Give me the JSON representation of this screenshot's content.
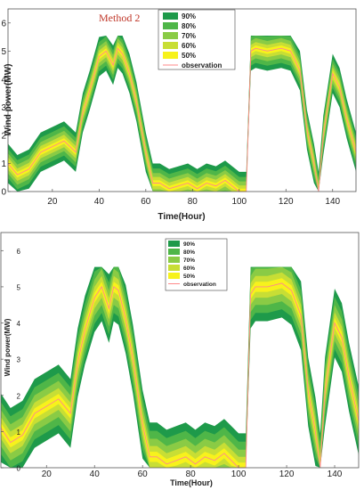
{
  "chart_data": [
    {
      "type": "area",
      "method_label": "Method 2",
      "xlabel": "Time(Hour)",
      "ylabel": "Wind power(MW)",
      "xlim": [
        1,
        150
      ],
      "ylim": [
        0,
        6.5
      ],
      "xticks": [
        20,
        40,
        60,
        80,
        100,
        120,
        140
      ],
      "yticks": [
        0,
        1,
        2,
        3,
        4,
        5,
        6
      ],
      "legend_position": "top-right",
      "legend": [
        "90%",
        "80%",
        "70%",
        "60%",
        "50%",
        "observation"
      ],
      "colors": {
        "band_90": "#1e9a4a",
        "band_80": "#4fb648",
        "band_70": "#8acb45",
        "band_60": "#c8de35",
        "band_50": "#f7f21c",
        "observation": "#ff8a8a"
      },
      "x": [
        1,
        5,
        10,
        15,
        20,
        25,
        30,
        33,
        36,
        40,
        43,
        46,
        48,
        50,
        53,
        56,
        60,
        63,
        66,
        70,
        74,
        78,
        82,
        86,
        90,
        94,
        97,
        100,
        103,
        105,
        107,
        112,
        118,
        122,
        126,
        129,
        132,
        134,
        136,
        140,
        143,
        146,
        150
      ],
      "observation": [
        1.0,
        0.6,
        0.8,
        1.4,
        1.6,
        1.8,
        1.4,
        2.8,
        3.6,
        4.8,
        5.0,
        4.5,
        5.1,
        4.9,
        4.2,
        3.2,
        1.4,
        0.3,
        0.3,
        0.1,
        0.2,
        0.3,
        0.1,
        0.3,
        0.2,
        0.4,
        0.2,
        0.0,
        0.0,
        5.0,
        5.1,
        5.0,
        5.1,
        5.0,
        4.3,
        2.2,
        1.0,
        0.0,
        2.0,
        4.2,
        3.7,
        2.6,
        1.4
      ],
      "band_half_widths": [
        0.7,
        0.52,
        0.36,
        0.22,
        0.1
      ]
    },
    {
      "type": "area",
      "method_label": "",
      "xlabel": "Time(Hour)",
      "ylabel": "Wind power(MW)",
      "xlim": [
        1,
        150
      ],
      "ylim": [
        0,
        6.5
      ],
      "xticks": [
        20,
        40,
        60,
        80,
        100,
        120,
        140
      ],
      "yticks": [
        0,
        1,
        2,
        3,
        4,
        5,
        6
      ],
      "legend_position": "top-center",
      "legend": [
        "90%",
        "80%",
        "70%",
        "60%",
        "50%",
        "observation"
      ],
      "colors": {
        "band_90": "#1e9a4a",
        "band_80": "#4fb648",
        "band_70": "#8acb45",
        "band_60": "#c8de35",
        "band_50": "#f7f21c",
        "observation": "#ff8a8a"
      },
      "x": [
        1,
        5,
        10,
        15,
        20,
        25,
        30,
        33,
        36,
        40,
        43,
        46,
        48,
        50,
        53,
        56,
        60,
        63,
        66,
        70,
        74,
        78,
        82,
        86,
        90,
        94,
        97,
        100,
        103,
        105,
        107,
        112,
        118,
        122,
        126,
        129,
        132,
        134,
        136,
        140,
        143,
        146,
        150
      ],
      "observation": [
        1.1,
        0.7,
        0.9,
        1.5,
        1.7,
        1.9,
        1.5,
        2.9,
        3.8,
        4.7,
        5.0,
        4.4,
        5.0,
        4.9,
        4.1,
        3.0,
        1.2,
        0.3,
        0.3,
        0.1,
        0.2,
        0.3,
        0.1,
        0.3,
        0.2,
        0.4,
        0.2,
        0.0,
        0.0,
        4.8,
        5.0,
        5.0,
        5.1,
        4.9,
        4.2,
        2.1,
        1.0,
        0.0,
        2.1,
        4.0,
        3.6,
        2.5,
        1.3
      ],
      "band_half_widths": [
        0.95,
        0.72,
        0.5,
        0.3,
        0.14
      ]
    }
  ]
}
